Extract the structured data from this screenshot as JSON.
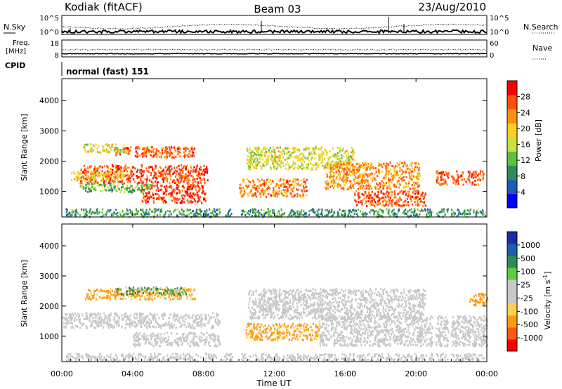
{
  "header": {
    "station": "Kodiak (fitACF)",
    "beam": "Beam 03",
    "date": "23/Aug/2010"
  },
  "top_panels": {
    "nsky": {
      "left_label": "N.Sky",
      "right_label": "N.Search",
      "left_ticks": [
        "10^5",
        "10^0"
      ],
      "right_ticks": [
        "10^5",
        "10^0"
      ]
    },
    "freq": {
      "left_label_1": "Freq.",
      "left_label_2": "[MHz]",
      "left_ticks": [
        "18",
        "8"
      ],
      "right_label": "Nave",
      "right_ticks": [
        "60",
        "0"
      ]
    },
    "cpid": {
      "label": "CPID",
      "value": "normal (fast) 151"
    }
  },
  "colors": {
    "power": [
      "#0000ff",
      "#1f5bb0",
      "#2f8a5a",
      "#5fc040",
      "#c8e040",
      "#ffd020",
      "#ff9010",
      "#ff5010",
      "#ff0000"
    ],
    "velocity": [
      "#ff0000",
      "#ff5a10",
      "#ff9a10",
      "#ffd050",
      "#c8c8c8",
      "#c8c8c8",
      "#5fcc3f",
      "#2f8a5a",
      "#1a60a8",
      "#1a2ca8"
    ],
    "gray_scatter": "#c8c8c8"
  },
  "chart_data": [
    {
      "type": "heatmap",
      "name": "Power",
      "ylabel": "Slant Range [km]",
      "ylim": [
        180,
        4700
      ],
      "yticks": [
        1000,
        2000,
        3000,
        4000
      ],
      "xlim": [
        0,
        24
      ],
      "colorbar": {
        "label": "Power [dB]",
        "ticks": [
          "4",
          "8",
          "12",
          "16",
          "20",
          "24",
          "28"
        ],
        "range": [
          0,
          32
        ]
      },
      "regions": [
        {
          "t0": 1.0,
          "t1": 8.2,
          "r0": 1300,
          "r1": 1900,
          "value": 27
        },
        {
          "t0": 0.5,
          "t1": 3.5,
          "r0": 1400,
          "r1": 1700,
          "value": 20
        },
        {
          "t0": 4.5,
          "t1": 8.1,
          "r0": 650,
          "r1": 1250,
          "value": 28
        },
        {
          "t0": 3.0,
          "t1": 7.5,
          "r0": 2150,
          "r1": 2500,
          "value": 26
        },
        {
          "t0": 1.2,
          "t1": 3.6,
          "r0": 2300,
          "r1": 2600,
          "value": 18
        },
        {
          "t0": 1.0,
          "t1": 5.0,
          "r0": 1000,
          "r1": 1300,
          "value": 12
        },
        {
          "t0": 10.0,
          "t1": 13.8,
          "r0": 850,
          "r1": 1450,
          "value": 24
        },
        {
          "t0": 10.4,
          "t1": 16.5,
          "r0": 1750,
          "r1": 2500,
          "value": 17
        },
        {
          "t0": 14.8,
          "t1": 20.2,
          "r0": 1100,
          "r1": 2000,
          "value": 23
        },
        {
          "t0": 16.5,
          "t1": 20.5,
          "r0": 550,
          "r1": 1050,
          "value": 26
        },
        {
          "t0": 21.0,
          "t1": 23.8,
          "r0": 1250,
          "r1": 1700,
          "value": 27
        },
        {
          "t0": 0.2,
          "t1": 23.9,
          "r0": 190,
          "r1": 450,
          "value": 10
        }
      ]
    },
    {
      "type": "heatmap",
      "name": "Velocity",
      "ylabel": "Slant Range [km]",
      "xlabel": "Time UT",
      "ylim": [
        180,
        4700
      ],
      "yticks": [
        1000,
        2000,
        3000,
        4000
      ],
      "xlim": [
        0,
        24
      ],
      "xticks": [
        "00:00",
        "04:00",
        "08:00",
        "12:00",
        "16:00",
        "20:00",
        "00:00"
      ],
      "colorbar": {
        "label": "Velocity [m s^-1]",
        "ticks": [
          "-1000",
          "-500",
          "-100",
          "-25",
          "25",
          "100",
          "500",
          "1000"
        ]
      },
      "regions": [
        {
          "t0": 0.0,
          "t1": 9.0,
          "r0": 1300,
          "r1": 1800,
          "value": 0
        },
        {
          "t0": 4.0,
          "t1": 9.0,
          "r0": 700,
          "r1": 1150,
          "value": 0
        },
        {
          "t0": 1.3,
          "t1": 7.5,
          "r0": 2250,
          "r1": 2600,
          "value": -200
        },
        {
          "t0": 3.0,
          "t1": 7.0,
          "r0": 2400,
          "r1": 2650,
          "value": 150
        },
        {
          "t0": 10.3,
          "t1": 14.5,
          "r0": 900,
          "r1": 1450,
          "value": -200
        },
        {
          "t0": 10.5,
          "t1": 20.5,
          "r0": 1600,
          "r1": 2600,
          "value": 0
        },
        {
          "t0": 14.5,
          "t1": 24.0,
          "r0": 700,
          "r1": 1700,
          "value": 0
        },
        {
          "t0": 23.0,
          "t1": 24.0,
          "r0": 2050,
          "r1": 2450,
          "value": -300
        },
        {
          "t0": 0.2,
          "t1": 23.9,
          "r0": 190,
          "r1": 450,
          "value": 0
        }
      ]
    }
  ]
}
